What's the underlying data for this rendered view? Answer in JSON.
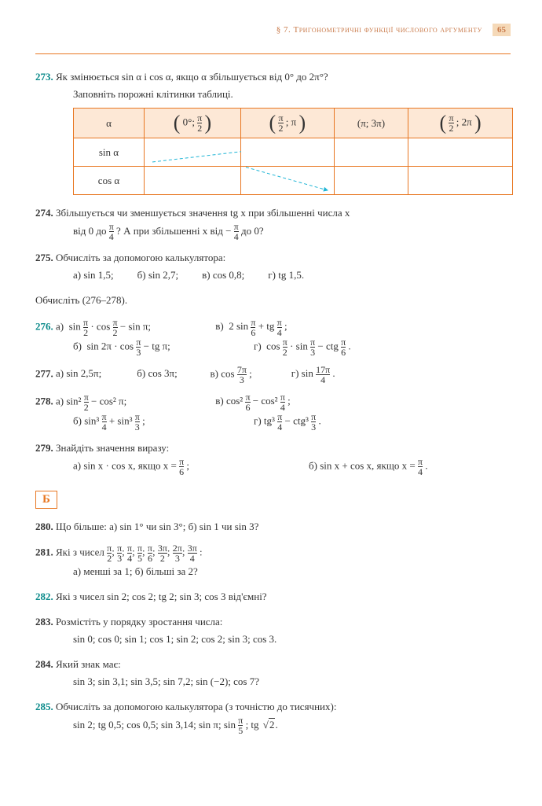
{
  "header": {
    "section": "§ 7.",
    "title": "Тригонометричні функції числового аргументу",
    "page": "65"
  },
  "p273": {
    "num": "273.",
    "text1": "Як змінюється sin α і cos α, якщо α збільшується від 0° до 2π°?",
    "text2": "Заповніть порожні клітинки таблиці.",
    "table": {
      "h0": "α",
      "h1a": "0°;",
      "h1b_num": "π",
      "h1b_den": "2",
      "h2a_num": "π",
      "h2a_den": "2",
      "h2b": "; π",
      "h3": "(π; 3π)",
      "h4a_num": "π",
      "h4a_den": "2",
      "h4b": "; 2π",
      "r1": "sin α",
      "r2": "cos α"
    }
  },
  "p274": {
    "num": "274.",
    "text1": "Збільшується чи зменшується значення tg x при збільшенні числа x",
    "text2a": "від 0 до ",
    "text2b": "? А при збільшенні x від ",
    "text2c": " до 0?",
    "f1num": "π",
    "f1den": "4",
    "f2num": "π",
    "f2den": "4",
    "f2neg": "−"
  },
  "p275": {
    "num": "275.",
    "text": "Обчисліть за допомогою калькулятора:",
    "a": "а) sin 1,5;",
    "b": "б) sin 2,7;",
    "v": "в) cos 0,8;",
    "g": "г) tg 1,5."
  },
  "calc_header": "Обчисліть (276–278).",
  "p276": {
    "num": "276.",
    "a_lbl": "а)",
    "a_text": "sin",
    "a_f1n": "π",
    "a_f1d": "2",
    "a_mid": "· cos",
    "a_f2n": "π",
    "a_f2d": "2",
    "a_tail": "− sin π;",
    "v_lbl": "в)",
    "v_text": "2 sin",
    "v_f1n": "π",
    "v_f1d": "6",
    "v_mid": "+ tg",
    "v_f2n": "π",
    "v_f2d": "4",
    "v_tail": ";",
    "b_lbl": "б)",
    "b_text": "sin 2π · cos",
    "b_f1n": "π",
    "b_f1d": "3",
    "b_tail": "− tg π;",
    "g_lbl": "г)",
    "g_text": "cos",
    "g_f1n": "π",
    "g_f1d": "2",
    "g_mid": "· sin",
    "g_f2n": "π",
    "g_f2d": "3",
    "g_mid2": "− ctg",
    "g_f3n": "π",
    "g_f3d": "6",
    "g_tail": "."
  },
  "p277": {
    "num": "277.",
    "a": "а) sin 2,5π;",
    "b": "б) cos 3π;",
    "v_lbl": "в)",
    "v_text": "cos",
    "v_fn": "7π",
    "v_fd": "3",
    "v_tail": ";",
    "g_lbl": "г)",
    "g_text": "sin",
    "g_fn": "17π",
    "g_fd": "4",
    "g_tail": "."
  },
  "p278": {
    "num": "278.",
    "a_lbl": "а)",
    "a_t1": "sin²",
    "a_f1n": "π",
    "a_f1d": "2",
    "a_mid": "− cos² π;",
    "v_lbl": "в)",
    "v_t1": "cos²",
    "v_f1n": "π",
    "v_f1d": "6",
    "v_mid": "− cos²",
    "v_f2n": "π",
    "v_f2d": "4",
    "v_tail": ";",
    "b_lbl": "б)",
    "b_t1": "sin³",
    "b_f1n": "π",
    "b_f1d": "4",
    "b_mid": "+ sin³",
    "b_f2n": "π",
    "b_f2d": "3",
    "b_tail": ";",
    "g_lbl": "г)",
    "g_t1": "tg³",
    "g_f1n": "π",
    "g_f1d": "4",
    "g_mid": "− ctg³",
    "g_f2n": "π",
    "g_f2d": "3",
    "g_tail": "."
  },
  "p279": {
    "num": "279.",
    "text": "Знайдіть значення виразу:",
    "a_lbl": "а)",
    "a_text": "sin x · cos x, якщо x =",
    "a_fn": "π",
    "a_fd": "6",
    "a_tail": ";",
    "b_lbl": "б)",
    "b_text": "sin x + cos x, якщо x =",
    "b_fn": "π",
    "b_fd": "4",
    "b_tail": "."
  },
  "section_b": "Б",
  "p280": {
    "num": "280.",
    "text": "Що більше: а) sin 1° чи sin 3°; б) sin 1 чи sin 3?"
  },
  "p281": {
    "num": "281.",
    "text": "Які з чисел ",
    "fracs": [
      {
        "n": "π",
        "d": "2"
      },
      {
        "n": "π",
        "d": "3"
      },
      {
        "n": "π",
        "d": "4"
      },
      {
        "n": "π",
        "d": "5"
      },
      {
        "n": "π",
        "d": "6"
      },
      {
        "n": "3π",
        "d": "2"
      },
      {
        "n": "2π",
        "d": "3"
      },
      {
        "n": "3π",
        "d": "4"
      }
    ],
    "colon": ":",
    "sub": "а) менші за 1; б) більші за 2?"
  },
  "p282": {
    "num": "282.",
    "text": "Які з чисел sin 2; cos 2; tg 2; sin 3; cos 3 від'ємні?"
  },
  "p283": {
    "num": "283.",
    "text": "Розмістіть у порядку зростання числа:",
    "sub": "sin 0; cos 0; sin 1; cos 1; sin 2; cos 2; sin 3; cos 3."
  },
  "p284": {
    "num": "284.",
    "text": "Який знак має:",
    "sub": "sin 3; sin 3,1; sin 3,5; sin 7,2; sin (−2); cos 7?"
  },
  "p285": {
    "num": "285.",
    "text": "Обчисліть за допомогою калькулятора (з точністю до тисячних):",
    "sub_a": "sin 2; tg 0,5; cos 0,5; sin 3,14; sin π; sin",
    "sub_fn": "π",
    "sub_fd": "5",
    "sub_mid": "; tg",
    "sub_rad": "2",
    "sub_tail": "."
  }
}
